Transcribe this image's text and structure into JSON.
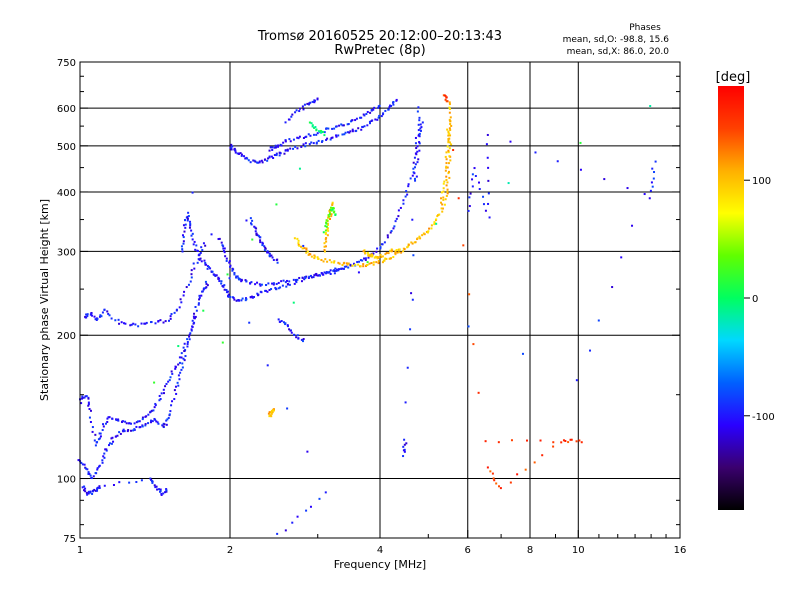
{
  "chart_data": {
    "type": "scatter",
    "title": "Tromsø 20160525 20:12:00–20:13:43",
    "subtitle": "RwPretec (8p)",
    "xlabel": "Frequency [MHz]",
    "ylabel": "Stationary phase Virtual Height [km]",
    "x_scale": "log",
    "y_scale": "log",
    "xlim": [
      1,
      16
    ],
    "ylim": [
      75,
      750
    ],
    "x_ticks": [
      1,
      2,
      4,
      6,
      8,
      10,
      16
    ],
    "x_tick_labels": [
      "1",
      "2",
      "4",
      "6",
      "8",
      "10",
      "16"
    ],
    "y_ticks": [
      75,
      100,
      200,
      300,
      400,
      500,
      600,
      750
    ],
    "y_tick_labels": [
      "75",
      "100",
      "200",
      "300",
      "400",
      "500",
      "600",
      "750"
    ],
    "x_gridlines": [
      2,
      4,
      6,
      8,
      10
    ],
    "y_gridlines": [
      100,
      200,
      300,
      400,
      500,
      600
    ],
    "annotation": {
      "heading": "Phases",
      "line1": "mean, sd,O: -98.8, 15.6",
      "line2": "mean, sd,X:  86.0, 20.0"
    },
    "colorbar": {
      "label": "[deg]",
      "range": [
        -180,
        180
      ],
      "ticks": [
        100,
        0,
        -100
      ],
      "tick_labels": [
        "100",
        "0",
        "-100"
      ],
      "colors": [
        "#000000",
        "#3a006e",
        "#2a00ff",
        "#0060ff",
        "#00d8ff",
        "#00ff60",
        "#60ff00",
        "#ffff00",
        "#ffb000",
        "#ff4000",
        "#ff0000"
      ]
    },
    "series": [
      {
        "traces": [
          {
            "phase": -100,
            "pts": [
              [
                1.0,
                110
              ],
              [
                1.03,
                104
              ],
              [
                1.06,
                100
              ],
              [
                1.1,
                107
              ],
              [
                1.13,
                115
              ],
              [
                1.17,
                122
              ],
              [
                1.22,
                126
              ],
              [
                1.28,
                127
              ],
              [
                1.35,
                130
              ],
              [
                1.42,
                133
              ],
              [
                1.48,
                128
              ],
              [
                1.52,
                137
              ],
              [
                1.56,
                155
              ],
              [
                1.6,
                172
              ],
              [
                1.64,
                190
              ],
              [
                1.68,
                210
              ],
              [
                1.72,
                232
              ],
              [
                1.76,
                248
              ],
              [
                1.8,
                258
              ]
            ]
          },
          {
            "phase": -100,
            "pts": [
              [
                1.0,
                145
              ],
              [
                1.03,
                150
              ],
              [
                1.05,
                138
              ],
              [
                1.08,
                118
              ],
              [
                1.1,
                125
              ],
              [
                1.14,
                135
              ],
              [
                1.2,
                132
              ],
              [
                1.26,
                130
              ],
              [
                1.34,
                134
              ],
              [
                1.4,
                140
              ],
              [
                1.46,
                150
              ],
              [
                1.52,
                164
              ],
              [
                1.58,
                176
              ],
              [
                1.64,
                194
              ],
              [
                1.7,
                220
              ]
            ]
          },
          {
            "phase": -100,
            "pts": [
              [
                1.02,
                218
              ],
              [
                1.05,
                222
              ],
              [
                1.08,
                215
              ],
              [
                1.12,
                227
              ],
              [
                1.2,
                212
              ],
              [
                1.3,
                210
              ],
              [
                1.4,
                212
              ],
              [
                1.5,
                215
              ],
              [
                1.58,
                230
              ],
              [
                1.66,
                260
              ],
              [
                1.72,
                290
              ],
              [
                1.78,
                310
              ]
            ]
          },
          {
            "phase": -100,
            "pts": [
              [
                1.01,
                96
              ],
              [
                1.04,
                93
              ],
              [
                1.07,
                94
              ],
              [
                1.09,
                96
              ],
              [
                1.38,
                100
              ],
              [
                1.42,
                96
              ],
              [
                1.46,
                93
              ],
              [
                1.5,
                95
              ]
            ]
          },
          {
            "phase": -100,
            "pts": [
              [
                1.6,
                300
              ],
              [
                1.62,
                330
              ],
              [
                1.64,
                360
              ],
              [
                1.66,
                340
              ],
              [
                1.7,
                310
              ],
              [
                1.74,
                290
              ],
              [
                1.8,
                280
              ],
              [
                1.85,
                270
              ],
              [
                1.9,
                262
              ],
              [
                1.95,
                250
              ],
              [
                2.0,
                240
              ],
              [
                2.1,
                236
              ],
              [
                2.2,
                240
              ],
              [
                2.3,
                245
              ],
              [
                2.45,
                250
              ],
              [
                2.6,
                255
              ],
              [
                2.8,
                262
              ],
              [
                3.0,
                268
              ],
              [
                3.2,
                270
              ],
              [
                3.4,
                276
              ]
            ]
          },
          {
            "phase": -100,
            "pts": [
              [
                1.9,
                320
              ],
              [
                1.95,
                300
              ],
              [
                2.0,
                280
              ],
              [
                2.05,
                265
              ],
              [
                2.1,
                262
              ],
              [
                2.2,
                258
              ],
              [
                2.35,
                255
              ],
              [
                2.5,
                258
              ],
              [
                2.7,
                262
              ],
              [
                2.9,
                266
              ],
              [
                3.1,
                270
              ],
              [
                3.3,
                275
              ],
              [
                3.5,
                280
              ],
              [
                3.7,
                288
              ],
              [
                3.9,
                298
              ],
              [
                4.1,
                315
              ],
              [
                4.3,
                345
              ],
              [
                4.5,
                390
              ],
              [
                4.65,
                440
              ],
              [
                4.75,
                520
              ],
              [
                4.8,
                600
              ]
            ]
          },
          {
            "phase": -100,
            "pts": [
              [
                2.0,
                500
              ],
              [
                2.05,
                490
              ],
              [
                2.1,
                478
              ],
              [
                2.2,
                465
              ],
              [
                2.3,
                460
              ],
              [
                2.4,
                470
              ],
              [
                2.5,
                480
              ],
              [
                2.6,
                488
              ],
              [
                2.8,
                500
              ],
              [
                3.0,
                510
              ],
              [
                3.2,
                520
              ],
              [
                3.4,
                530
              ],
              [
                3.6,
                540
              ],
              [
                3.8,
                555
              ],
              [
                4.0,
                575
              ],
              [
                4.2,
                600
              ],
              [
                4.3,
                625
              ]
            ]
          },
          {
            "phase": -100,
            "pts": [
              [
                2.4,
                490
              ],
              [
                2.5,
                500
              ],
              [
                2.6,
                512
              ],
              [
                2.8,
                522
              ],
              [
                3.0,
                532
              ],
              [
                3.2,
                545
              ],
              [
                3.4,
                555
              ],
              [
                3.6,
                570
              ],
              [
                3.8,
                590
              ],
              [
                4.0,
                610
              ]
            ]
          },
          {
            "phase": -100,
            "pts": [
              [
                2.2,
                350
              ],
              [
                2.25,
                330
              ],
              [
                2.3,
                320
              ],
              [
                2.35,
                305
              ],
              [
                2.4,
                295
              ],
              [
                2.5,
                285
              ]
            ]
          },
          {
            "phase": -100,
            "pts": [
              [
                2.6,
                560
              ],
              [
                2.75,
                595
              ],
              [
                2.9,
                615
              ],
              [
                3.0,
                630
              ]
            ]
          },
          {
            "phase": -100,
            "pts": [
              [
                2.5,
                215
              ],
              [
                2.6,
                210
              ],
              [
                2.7,
                200
              ],
              [
                2.8,
                195
              ]
            ]
          },
          {
            "phase": -100,
            "pts": [
              [
                4.45,
                112
              ],
              [
                4.5,
                120
              ],
              [
                4.7,
                420
              ],
              [
                4.75,
                470
              ],
              [
                4.8,
                520
              ],
              [
                4.85,
                560
              ]
            ]
          },
          {
            "phase": 100,
            "pts": [
              [
                2.7,
                320
              ],
              [
                2.8,
                305
              ],
              [
                2.9,
                295
              ],
              [
                3.0,
                290
              ],
              [
                3.2,
                285
              ],
              [
                3.4,
                282
              ],
              [
                3.6,
                280
              ],
              [
                3.8,
                282
              ],
              [
                4.0,
                285
              ],
              [
                4.2,
                290
              ],
              [
                4.4,
                300
              ],
              [
                4.6,
                310
              ],
              [
                4.8,
                320
              ],
              [
                5.0,
                332
              ],
              [
                5.2,
                348
              ],
              [
                5.35,
                370
              ],
              [
                5.45,
                400
              ],
              [
                5.5,
                450
              ],
              [
                5.52,
                500
              ],
              [
                5.53,
                560
              ],
              [
                5.54,
                620
              ]
            ]
          },
          {
            "phase": 100,
            "pts": [
              [
                3.1,
                300
              ],
              [
                3.12,
                320
              ],
              [
                3.15,
                340
              ],
              [
                3.18,
                360
              ],
              [
                3.2,
                380
              ]
            ]
          },
          {
            "phase": 100,
            "pts": [
              [
                3.7,
                300
              ],
              [
                3.8,
                295
              ],
              [
                3.9,
                292
              ],
              [
                4.0,
                292
              ],
              [
                4.2,
                300
              ],
              [
                4.4,
                305
              ]
            ]
          },
          {
            "phase": 100,
            "pts": [
              [
                5.3,
                380
              ],
              [
                5.4,
                420
              ],
              [
                5.45,
                470
              ],
              [
                5.48,
                520
              ],
              [
                5.5,
                560
              ]
            ]
          },
          {
            "phase": 100,
            "pts": [
              [
                2.4,
                135
              ],
              [
                2.42,
                138
              ],
              [
                2.45,
                140
              ]
            ]
          },
          {
            "phase": 20,
            "pts": [
              [
                3.1,
                330
              ],
              [
                3.15,
                350
              ],
              [
                3.2,
                370
              ],
              [
                3.25,
                360
              ]
            ]
          },
          {
            "phase": 0,
            "pts": [
              [
                2.9,
                560
              ],
              [
                3.0,
                540
              ],
              [
                3.1,
                530
              ],
              [
                1.4,
                160
              ],
              [
                14.0,
                610
              ]
            ]
          },
          {
            "phase": 150,
            "pts": [
              [
                5.4,
                640
              ],
              [
                5.45,
                620
              ],
              [
                6.5,
                120
              ],
              [
                10.2,
                120
              ],
              [
                9.2,
                120
              ],
              [
                7.0,
                95
              ],
              [
                6.6,
                105
              ]
            ]
          },
          {
            "phase": -100,
            "pts": [
              [
                6.0,
                365
              ],
              [
                6.2,
                450
              ],
              [
                6.6,
                355
              ],
              [
                6.6,
                530
              ],
              [
                14.0,
                390
              ],
              [
                14.2,
                460
              ],
              [
                10.0,
                160
              ],
              [
                1.68,
                400
              ],
              [
                3.1,
                93
              ],
              [
                2.5,
                76
              ]
            ]
          }
        ]
      }
    ]
  }
}
